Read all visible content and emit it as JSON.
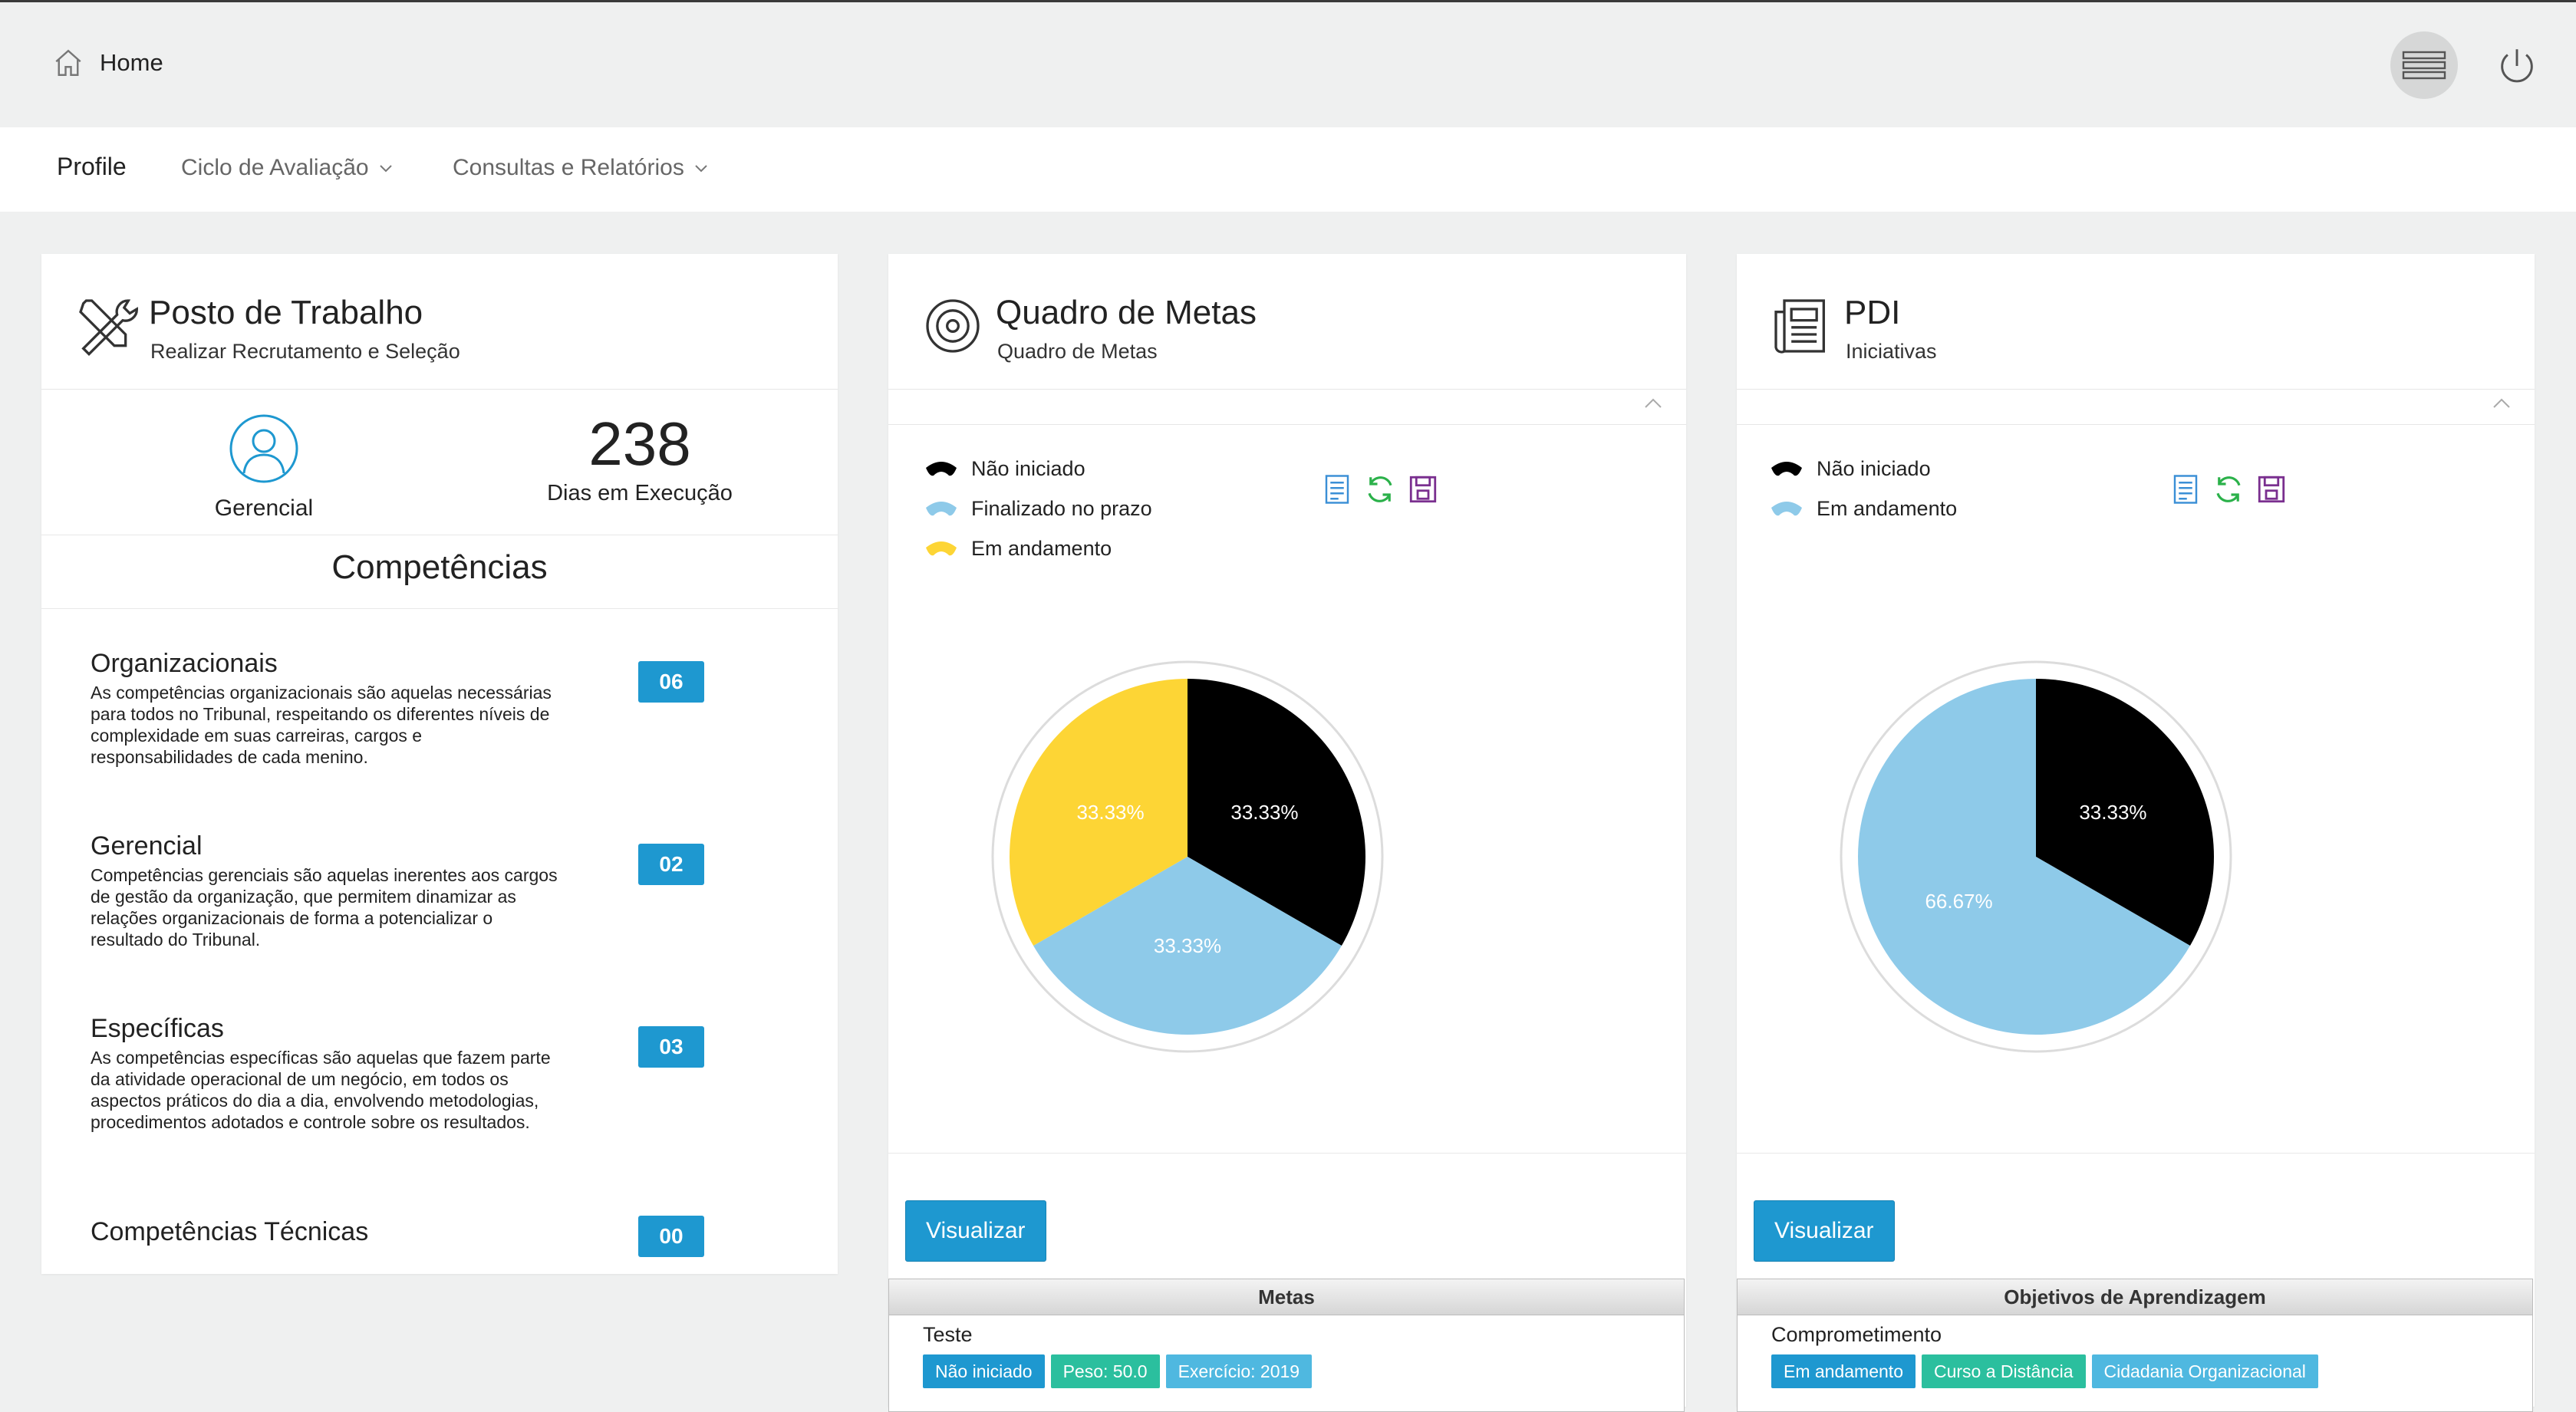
{
  "topbar": {
    "home_label": "Home"
  },
  "nav": {
    "items": [
      {
        "label": "Profile",
        "active": true
      },
      {
        "label": "Ciclo de Avaliação",
        "dropdown": true
      },
      {
        "label": "Consultas e Relatórios",
        "dropdown": true
      }
    ]
  },
  "posto": {
    "title": "Posto de Trabalho",
    "subtitle": "Realizar Recrutamento e Seleção",
    "role_label": "Gerencial",
    "days_value": "238",
    "days_label": "Dias em Execução",
    "competencias_title": "Competências",
    "competencias": [
      {
        "name": "Organizacionais",
        "desc": "As competências organizacionais são aquelas necessárias para todos no Tribunal, respeitando os diferentes níveis de complexidade em suas carreiras, cargos e responsabilidades de cada menino.",
        "count": "06"
      },
      {
        "name": "Gerencial",
        "desc": "Competências gerenciais são aquelas inerentes aos cargos de gestão da organização, que permitem dinamizar as relações organizacionais de forma a potencializar o resultado do Tribunal.",
        "count": "02"
      },
      {
        "name": "Específicas",
        "desc": "As competências específicas são aquelas que fazem parte da atividade operacional de um negócio, em todos os aspectos práticos do dia a dia, envolvendo metodologias, procedimentos adotados e controle sobre os resultados.",
        "count": "03"
      },
      {
        "name": "Competências Técnicas",
        "desc": "",
        "count": "00"
      }
    ]
  },
  "metas": {
    "title": "Quadro de Metas",
    "subtitle": "Quadro de Metas",
    "legend": [
      {
        "label": "Não iniciado",
        "color": "#000000"
      },
      {
        "label": "Finalizado no prazo",
        "color": "#8ecae9"
      },
      {
        "label": "Em andamento",
        "color": "#fdd535"
      }
    ],
    "visualizar_label": "Visualizar",
    "panel_title": "Metas",
    "item_name": "Teste",
    "tags": [
      {
        "label": "Não iniciado",
        "color": "#1e98d0"
      },
      {
        "label": "Peso: 50.0",
        "color": "#2bbf9e"
      },
      {
        "label": "Exercício: 2019",
        "color": "#4fb8e0"
      }
    ]
  },
  "pdi": {
    "title": "PDI",
    "subtitle": "Iniciativas",
    "legend": [
      {
        "label": "Não iniciado",
        "color": "#000000"
      },
      {
        "label": "Em andamento",
        "color": "#8ecae9"
      }
    ],
    "visualizar_label": "Visualizar",
    "panel_title": "Objetivos de Aprendizagem",
    "item_name": "Comprometimento",
    "tags": [
      {
        "label": "Em andamento",
        "color": "#1e98d0"
      },
      {
        "label": "Curso a Distância",
        "color": "#2bbf9e"
      },
      {
        "label": "Cidadania Organizacional",
        "color": "#4fb8e0"
      }
    ]
  },
  "chart_data": [
    {
      "type": "pie",
      "categories": [
        "Não iniciado",
        "Finalizado no prazo",
        "Em andamento"
      ],
      "values": [
        33.33,
        33.33,
        33.33
      ],
      "labels": [
        "33.33%",
        "33.33%",
        "33.33%"
      ],
      "colors": [
        "#000000",
        "#8ecae9",
        "#fdd535"
      ]
    },
    {
      "type": "pie",
      "categories": [
        "Não iniciado",
        "Em andamento"
      ],
      "values": [
        33.33,
        66.67
      ],
      "labels": [
        "33.33%",
        "66.67%"
      ],
      "colors": [
        "#000000",
        "#8ecae9"
      ]
    }
  ]
}
